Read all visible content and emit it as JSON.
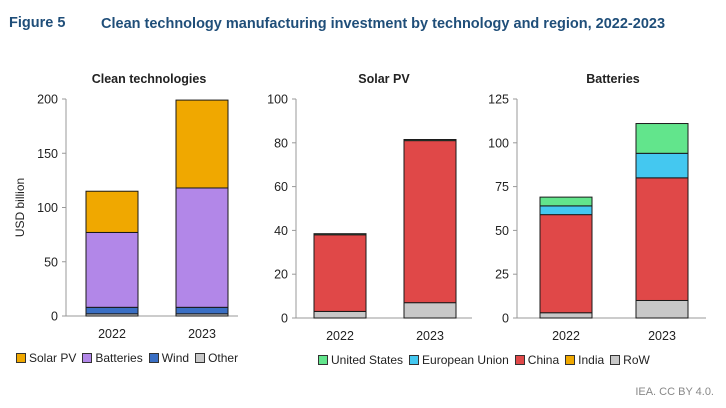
{
  "figure": {
    "label": "Figure 5",
    "title": "Clean technology manufacturing investment by technology and region, 2022-2023",
    "credit": "IEA. CC BY 4.0."
  },
  "chart_data": [
    {
      "type": "bar",
      "stacked": true,
      "title": "Clean technologies",
      "ylabel": "USD billion",
      "categories": [
        "2022",
        "2023"
      ],
      "ylim": [
        0,
        200
      ],
      "yticks": [
        0,
        50,
        100,
        150,
        200
      ],
      "series": [
        {
          "name": "Other",
          "color": "#c8c8c8",
          "values": [
            2,
            2
          ]
        },
        {
          "name": "Wind",
          "color": "#3a6fc4",
          "values": [
            6,
            6
          ]
        },
        {
          "name": "Batteries",
          "color": "#b287e8",
          "values": [
            69,
            110
          ]
        },
        {
          "name": "Solar PV",
          "color": "#f0a800",
          "values": [
            38,
            81
          ]
        }
      ],
      "legend": [
        "Solar PV",
        "Batteries",
        "Wind",
        "Other"
      ]
    },
    {
      "type": "bar",
      "stacked": true,
      "title": "Solar PV",
      "ylabel": "",
      "categories": [
        "2022",
        "2023"
      ],
      "ylim": [
        0,
        100
      ],
      "yticks": [
        0,
        20,
        40,
        60,
        80,
        100
      ],
      "series": [
        {
          "name": "RoW",
          "color": "#c8c8c8",
          "values": [
            3,
            7
          ]
        },
        {
          "name": "China",
          "color": "#e04848",
          "values": [
            35,
            74
          ]
        },
        {
          "name": "India",
          "color": "#f0a800",
          "values": [
            0,
            0
          ]
        },
        {
          "name": "European Union",
          "color": "#44c8f0",
          "values": [
            0,
            0
          ]
        },
        {
          "name": "United States",
          "color": "#62e58c",
          "values": [
            0.5,
            0.5
          ]
        }
      ]
    },
    {
      "type": "bar",
      "stacked": true,
      "title": "Batteries",
      "ylabel": "",
      "categories": [
        "2022",
        "2023"
      ],
      "ylim": [
        0,
        125
      ],
      "yticks": [
        0,
        25,
        50,
        75,
        100,
        125
      ],
      "series": [
        {
          "name": "RoW",
          "color": "#c8c8c8",
          "values": [
            3,
            10
          ]
        },
        {
          "name": "China",
          "color": "#e04848",
          "values": [
            56,
            70
          ]
        },
        {
          "name": "India",
          "color": "#f0a800",
          "values": [
            0,
            0
          ]
        },
        {
          "name": "European Union",
          "color": "#44c8f0",
          "values": [
            5,
            14
          ]
        },
        {
          "name": "United States",
          "color": "#62e58c",
          "values": [
            5,
            17
          ]
        }
      ],
      "legend": [
        "United States",
        "European Union",
        "China",
        "India",
        "RoW"
      ]
    }
  ],
  "legends": {
    "technologies": [
      {
        "label": "Solar PV",
        "color": "#f0a800"
      },
      {
        "label": "Batteries",
        "color": "#b287e8"
      },
      {
        "label": "Wind",
        "color": "#3a6fc4"
      },
      {
        "label": "Other",
        "color": "#c8c8c8"
      }
    ],
    "regions": [
      {
        "label": "United States",
        "color": "#62e58c"
      },
      {
        "label": "European Union",
        "color": "#44c8f0"
      },
      {
        "label": "China",
        "color": "#e04848"
      },
      {
        "label": "India",
        "color": "#f0a800"
      },
      {
        "label": "RoW",
        "color": "#c8c8c8"
      }
    ]
  }
}
